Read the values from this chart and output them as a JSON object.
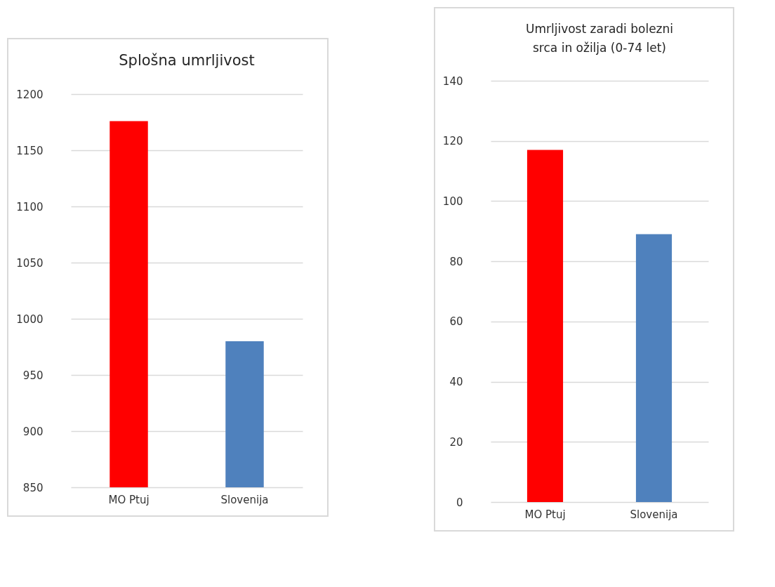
{
  "chart_data": [
    {
      "type": "bar",
      "title": "Splošna umrljivost",
      "categories": [
        "MO Ptuj",
        "Slovenija"
      ],
      "values": [
        1176,
        980
      ],
      "colors": [
        "#ff0000",
        "#4f81bd"
      ],
      "ylim": [
        850,
        1200
      ],
      "yticks": [
        850,
        900,
        950,
        1000,
        1050,
        1100,
        1150,
        1200
      ],
      "grid": "y"
    },
    {
      "type": "bar",
      "title": "Umrljivost zaradi bolezni srca in ožilja (0-74 let)",
      "categories": [
        "MO Ptuj",
        "Slovenija"
      ],
      "values": [
        117,
        89
      ],
      "colors": [
        "#ff0000",
        "#4f81bd"
      ],
      "ylim": [
        0,
        140
      ],
      "yticks": [
        0,
        20,
        40,
        60,
        80,
        100,
        120,
        140
      ],
      "grid": "y"
    }
  ]
}
